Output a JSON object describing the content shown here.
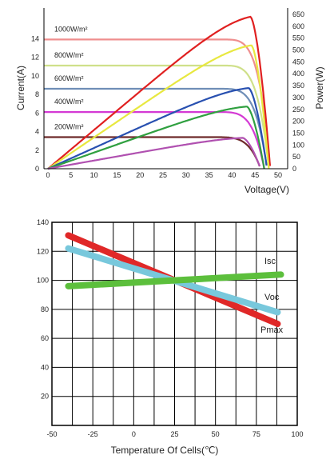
{
  "chart_data": [
    {
      "type": "line",
      "xlabel": "Voltage(V)",
      "ylabel": "Current(A)",
      "y2label": "Power(W)",
      "xlim": [
        0,
        50
      ],
      "ylim": [
        0,
        16
      ],
      "y2lim": [
        0,
        650
      ],
      "x_ticks": [
        0,
        5,
        10,
        15,
        20,
        25,
        30,
        35,
        40,
        45,
        50
      ],
      "y_ticks": [
        0,
        2,
        4,
        6,
        8,
        10,
        12,
        14
      ],
      "y2_ticks": [
        0,
        50,
        100,
        150,
        200,
        250,
        300,
        350,
        400,
        450,
        500,
        550,
        600,
        650
      ],
      "irradiance_labels": [
        "1000W/m²",
        "800W/m²",
        "600W/m²",
        "400W/m²",
        "200W/m²"
      ],
      "current_curves": [
        {
          "color": "#ef8e8e",
          "isc": 13.9,
          "voc": 48.3
        },
        {
          "color": "#cfe08a",
          "isc": 11.1,
          "voc": 48.0
        },
        {
          "color": "#6f8eb7",
          "isc": 8.6,
          "voc": 47.6
        },
        {
          "color": "#d43ad4",
          "isc": 6.1,
          "voc": 47.0
        },
        {
          "color": "#6e2a2a",
          "isc": 3.4,
          "voc": 46.2
        }
      ],
      "power_curves": [
        {
          "color": "#e02020",
          "vmp": 44.0,
          "pmax": 640,
          "voc": 48.3
        },
        {
          "color": "#e8e840",
          "vmp": 44.2,
          "pmax": 520,
          "voc": 48.0
        },
        {
          "color": "#2850b0",
          "vmp": 43.6,
          "pmax": 340,
          "voc": 47.6
        },
        {
          "color": "#30a040",
          "vmp": 43.2,
          "pmax": 262,
          "voc": 47.0
        },
        {
          "color": "#b050b0",
          "vmp": 42.3,
          "pmax": 130,
          "voc": 46.2
        }
      ]
    },
    {
      "type": "line",
      "xlabel": "Temperature Of Cells(℃)",
      "ylabel": "",
      "xlim": [
        -50,
        100
      ],
      "ylim": [
        0,
        140
      ],
      "x_ticks": [
        -50,
        -25,
        0,
        25,
        50,
        75,
        100
      ],
      "y_ticks": [
        20,
        40,
        60,
        80,
        100,
        120,
        140
      ],
      "series": [
        {
          "name": "Isc",
          "color": "#5cbf3c",
          "x": [
            -40,
            90
          ],
          "y": [
            96,
            104
          ]
        },
        {
          "name": "Voc",
          "color": "#78c8dc",
          "x": [
            -40,
            88
          ],
          "y": [
            122,
            78
          ]
        },
        {
          "name": "Pmax",
          "color": "#e02828",
          "x": [
            -40,
            88
          ],
          "y": [
            131,
            70
          ]
        }
      ]
    }
  ]
}
